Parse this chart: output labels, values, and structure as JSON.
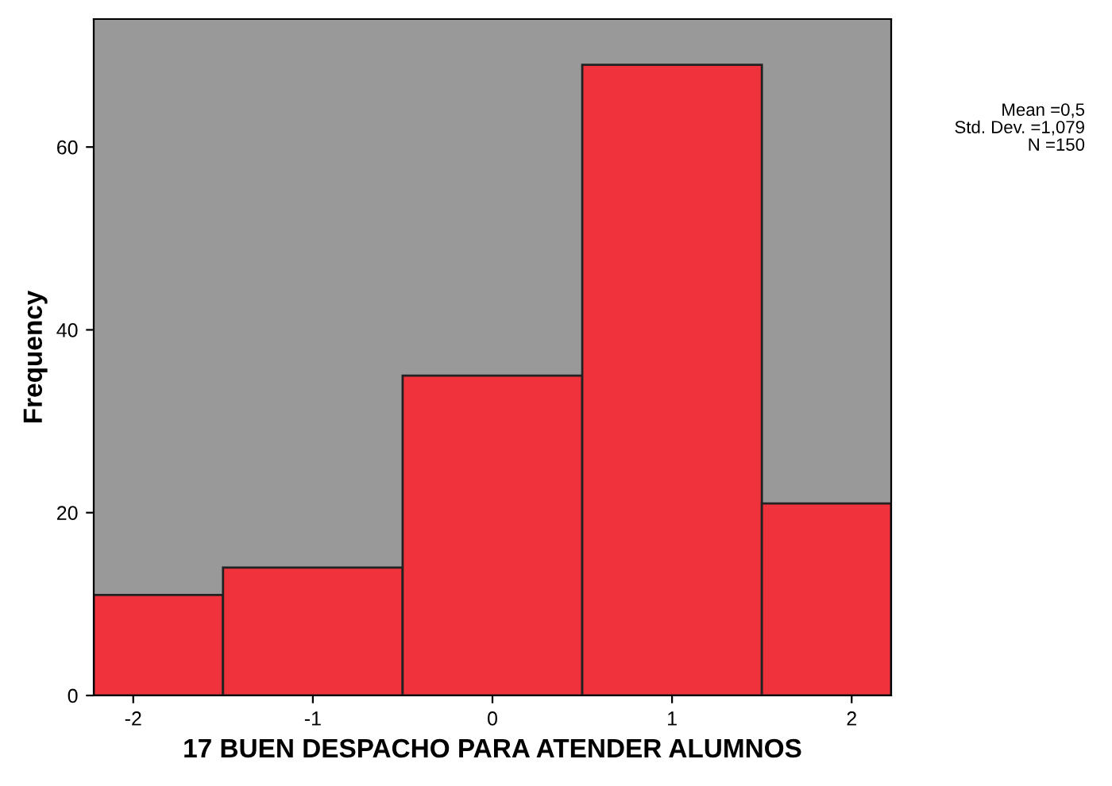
{
  "chart_data": {
    "type": "histogram",
    "xlabel": "17 BUEN DESPACHO PARA ATENDER ALUMNOS",
    "ylabel": "Frequency",
    "bins": [
      -2.22,
      -1.5,
      -0.5,
      0.5,
      1.5,
      2.22
    ],
    "values": [
      11,
      14,
      35,
      69,
      21
    ],
    "color": "#ef323b",
    "xlim": [
      -2.22,
      2.22
    ],
    "xticks": [
      -2,
      -1,
      0,
      1,
      2
    ],
    "ylim": [
      0,
      74
    ],
    "yticks": [
      0,
      20,
      40,
      60
    ],
    "grid": false,
    "annotations": [
      "Mean =0,5",
      "Std. Dev. =1,079",
      "N =150"
    ]
  }
}
